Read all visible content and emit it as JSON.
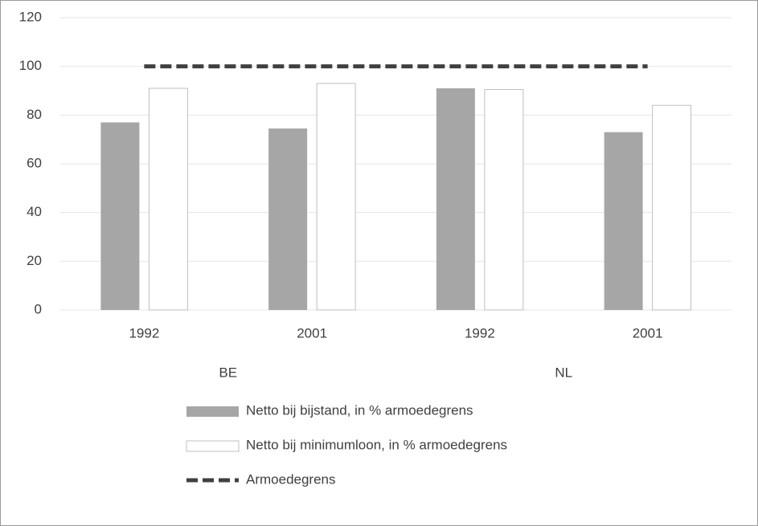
{
  "chart_data": {
    "type": "bar",
    "categories": [
      "1992",
      "2001",
      "1992",
      "2001"
    ],
    "groups": [
      "BE",
      "NL"
    ],
    "series": [
      {
        "name": "Netto bij bijstand, in % armoedegrens",
        "color": "#a6a6a6",
        "values": [
          77,
          74.5,
          91,
          73
        ]
      },
      {
        "name": "Netto bij minimumloon, in % armoedegrens",
        "color": "#ffffff",
        "values": [
          91,
          93,
          90.5,
          84
        ]
      },
      {
        "name": "Armoedegrens",
        "color": "#404040",
        "type": "line",
        "dashed": true,
        "values": [
          100,
          100,
          100,
          100
        ]
      }
    ],
    "ylim": [
      0,
      120
    ],
    "yticks": [
      0,
      20,
      40,
      60,
      80,
      100,
      120
    ],
    "grid": true,
    "legend": "bottom"
  }
}
